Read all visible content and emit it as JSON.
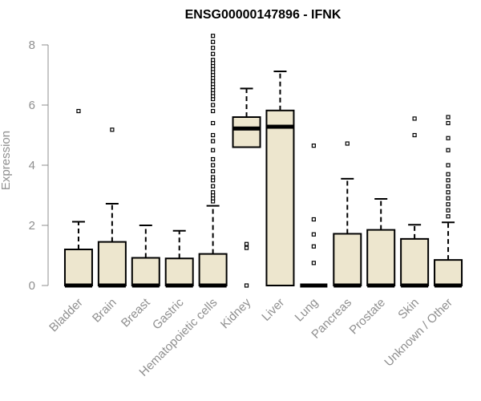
{
  "chart_data": {
    "type": "boxplot",
    "title": "ENSG00000147896 - IFNK",
    "xlabel": "",
    "ylabel": "Expression",
    "ylim": [
      0,
      8.3
    ],
    "yticks": [
      0,
      2,
      4,
      6,
      8
    ],
    "grid": false,
    "legend": "none",
    "colors": {
      "box_fill": "#EDE6CE",
      "box_stroke": "#000000",
      "median": "#000000",
      "axis": "#8f8f8f"
    },
    "categories": [
      "Bladder",
      "Brain",
      "Breast",
      "Gastric",
      "Hematopoietic cells",
      "Kidney",
      "Liver",
      "Lung",
      "Pancreas",
      "Prostate",
      "Skin",
      "Unknown / Other"
    ],
    "boxes": [
      {
        "q1": 0,
        "median": 0,
        "q3": 1.2,
        "whisker_low": 0,
        "whisker_high": 2.12,
        "outliers": [
          5.8
        ]
      },
      {
        "q1": 0,
        "median": 0,
        "q3": 1.45,
        "whisker_low": 0,
        "whisker_high": 2.72,
        "outliers": [
          5.18
        ]
      },
      {
        "q1": 0,
        "median": 0,
        "q3": 0.92,
        "whisker_low": 0,
        "whisker_high": 2.0,
        "outliers": []
      },
      {
        "q1": 0,
        "median": 0,
        "q3": 0.9,
        "whisker_low": 0,
        "whisker_high": 1.82,
        "outliers": []
      },
      {
        "q1": 0,
        "median": 0,
        "q3": 1.05,
        "whisker_low": 0,
        "whisker_high": 2.65,
        "outliers": [
          2.8,
          2.9,
          3.0,
          3.1,
          3.3,
          3.5,
          3.6,
          3.8,
          4.0,
          4.2,
          4.5,
          4.8,
          5.0,
          5.4,
          5.8,
          6.0,
          6.2,
          6.3,
          6.4,
          6.5,
          6.6,
          6.7,
          6.8,
          6.9,
          7.0,
          7.1,
          7.2,
          7.3,
          7.4,
          7.5,
          7.7,
          7.9,
          8.1,
          8.3
        ]
      },
      {
        "q1": 4.6,
        "median": 5.22,
        "q3": 5.6,
        "whisker_low": 4.6,
        "whisker_high": 6.55,
        "outliers": [
          0,
          1.25,
          1.38
        ]
      },
      {
        "q1": 0,
        "median": 5.28,
        "q3": 5.82,
        "whisker_low": 0,
        "whisker_high": 7.12,
        "outliers": []
      },
      {
        "q1": 0,
        "median": 0,
        "q3": 0,
        "whisker_low": 0,
        "whisker_high": 0,
        "outliers": [
          0.75,
          1.3,
          1.7,
          2.2,
          4.65
        ]
      },
      {
        "q1": 0,
        "median": 0,
        "q3": 1.72,
        "whisker_low": 0,
        "whisker_high": 3.55,
        "outliers": [
          4.72
        ]
      },
      {
        "q1": 0,
        "median": 0,
        "q3": 1.85,
        "whisker_low": 0,
        "whisker_high": 2.88,
        "outliers": []
      },
      {
        "q1": 0,
        "median": 0,
        "q3": 1.55,
        "whisker_low": 0,
        "whisker_high": 2.02,
        "outliers": [
          5.0,
          5.55
        ]
      },
      {
        "q1": 0,
        "median": 0,
        "q3": 0.85,
        "whisker_low": 0,
        "whisker_high": 2.1,
        "outliers": [
          2.3,
          2.5,
          2.7,
          2.9,
          3.1,
          3.3,
          3.5,
          3.7,
          4.0,
          4.5,
          4.9,
          5.4,
          5.6
        ]
      }
    ]
  }
}
